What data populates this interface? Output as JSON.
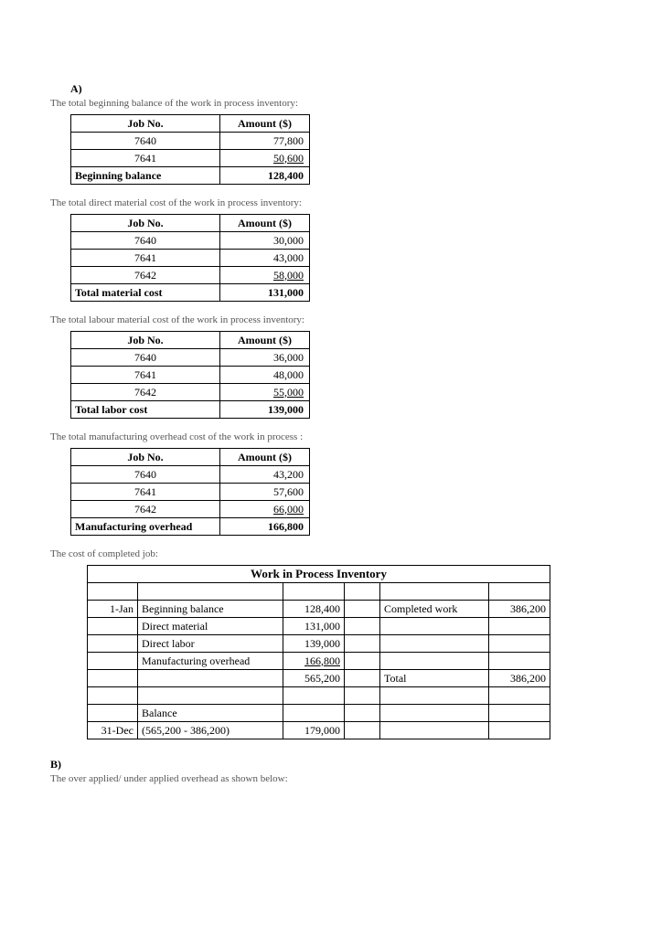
{
  "sectionA": {
    "label": "A)",
    "tables": [
      {
        "desc": "The total beginning balance of the work in process inventory:",
        "headers": [
          "Job No.",
          "Amount ($)"
        ],
        "rows": [
          {
            "job": "7640",
            "amount": "77,800",
            "underline": false
          },
          {
            "job": "7641",
            "amount": "50,600",
            "underline": true
          }
        ],
        "total": {
          "label": "Beginning balance",
          "amount": "128,400"
        }
      },
      {
        "desc": "The total direct material cost of the work in process inventory:",
        "headers": [
          "Job No.",
          "Amount ($)"
        ],
        "rows": [
          {
            "job": "7640",
            "amount": "30,000",
            "underline": false
          },
          {
            "job": "7641",
            "amount": "43,000",
            "underline": false
          },
          {
            "job": "7642",
            "amount": "58,000",
            "underline": true
          }
        ],
        "total": {
          "label": "Total material cost",
          "amount": "131,000"
        }
      },
      {
        "desc": "The total labour material cost of the work in process inventory:",
        "headers": [
          "Job No.",
          "Amount ($)"
        ],
        "rows": [
          {
            "job": "7640",
            "amount": "36,000",
            "underline": false
          },
          {
            "job": "7641",
            "amount": "48,000",
            "underline": false
          },
          {
            "job": "7642",
            "amount": "55,000",
            "underline": true
          }
        ],
        "total": {
          "label": "Total labor cost",
          "amount": "139,000"
        }
      },
      {
        "desc": "The total manufacturing overhead cost of the work in process :",
        "headers": [
          "Job No.",
          "Amount ($)"
        ],
        "rows": [
          {
            "job": "7640",
            "amount": "43,200",
            "underline": false
          },
          {
            "job": "7641",
            "amount": "57,600",
            "underline": false
          },
          {
            "job": "7642",
            "amount": "66,000",
            "underline": true
          }
        ],
        "total": {
          "label": "Manufacturing overhead",
          "amount": "166,800"
        }
      }
    ],
    "completed_desc": "The cost of completed job:",
    "wip": {
      "title": "Work in Process Inventory",
      "rows": [
        {
          "c1": "1-Jan",
          "c2": "Beginning balance",
          "c3": "128,400",
          "c4": "",
          "c5": "Completed work",
          "c6": "386,200"
        },
        {
          "c1": "",
          "c2": "Direct material",
          "c3": "131,000",
          "c4": "",
          "c5": "",
          "c6": ""
        },
        {
          "c1": "",
          "c2": "Direct labor",
          "c3": "139,000",
          "c4": "",
          "c5": "",
          "c6": ""
        },
        {
          "c1": "",
          "c2": "Manufacturing overhead",
          "c3": "166,800",
          "c3_underline": true,
          "c4": "",
          "c5": "",
          "c6": ""
        },
        {
          "c1": "",
          "c2": "",
          "c3": "565,200",
          "c4": "",
          "c5": "Total",
          "c6": "386,200"
        },
        {
          "c1": "",
          "c2": "",
          "c3": "",
          "c4": "",
          "c5": "",
          "c6": ""
        },
        {
          "c1": "",
          "c2": "Balance",
          "c3": "",
          "c4": "",
          "c5": "",
          "c6": ""
        },
        {
          "c1": "31-Dec",
          "c2": "(565,200 - 386,200)",
          "c3": "179,000",
          "c4": "",
          "c5": "",
          "c6": ""
        }
      ]
    }
  },
  "sectionB": {
    "label": "B)",
    "desc": "The over applied/ under applied overhead as shown below:"
  }
}
